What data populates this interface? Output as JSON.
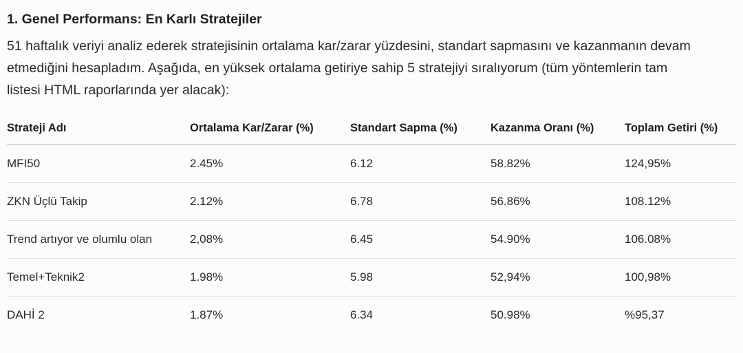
{
  "section": {
    "title": "1. Genel Performans: En Karlı Stratejiler",
    "intro": "51 haftalık veriyi analiz ederek stratejisinin ortalama kar/zarar yüzdesini, standart sapmasını ve kazanmanın devam etmediğini hesapladım. Aşağıda, en yüksek ortalama getiriye sahip 5 stratejiyi sıralıyorum (tüm yöntemlerin tam listesi HTML raporlarında yer alacak):"
  },
  "table": {
    "headers": [
      "Strateji Adı",
      "Ortalama Kar/Zarar (%)",
      "Standart Sapma (%)",
      "Kazanma Oranı (%)",
      "Toplam Getiri (%)"
    ],
    "rows": [
      [
        "MFI50",
        "2.45%",
        "6.12",
        "58.82%",
        "124,95%"
      ],
      [
        "ZKN Üçlü Takip",
        "2.12%",
        "6.78",
        "56.86%",
        "108.12%"
      ],
      [
        "Trend artıyor ve olumlu olan",
        "2,08%",
        "6.45",
        "54.90%",
        "106.08%"
      ],
      [
        "Temel+Teknik2",
        "1.98%",
        "5.98",
        "52,94%",
        "100,98%"
      ],
      [
        "DAHİ 2",
        "1.87%",
        "6.34",
        "50.98%",
        "%95,37"
      ]
    ]
  }
}
